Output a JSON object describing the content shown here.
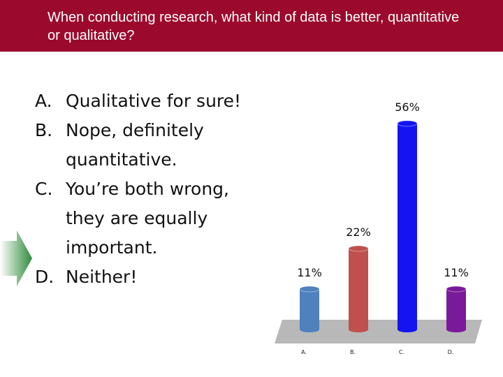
{
  "header": {
    "title": "When conducting research, what kind of data is better, quantitative or qualitative?"
  },
  "options": [
    {
      "letter": "A.",
      "text": "Qualitative for sure!"
    },
    {
      "letter": "B.",
      "text": "Nope, definitely quantitative."
    },
    {
      "letter": "C.",
      "text": "You’re both wrong, they are equally important."
    },
    {
      "letter": "D.",
      "text": "Neither!"
    }
  ],
  "chart_data": {
    "type": "bar",
    "categories": [
      "A.",
      "B.",
      "C.",
      "D."
    ],
    "values": [
      11,
      22,
      56,
      11
    ],
    "value_labels": [
      "11%",
      "22%",
      "56%",
      "11%"
    ],
    "colors": [
      "#4f81bd",
      "#c0504d",
      "#1414f0",
      "#7a1a9a"
    ]
  }
}
